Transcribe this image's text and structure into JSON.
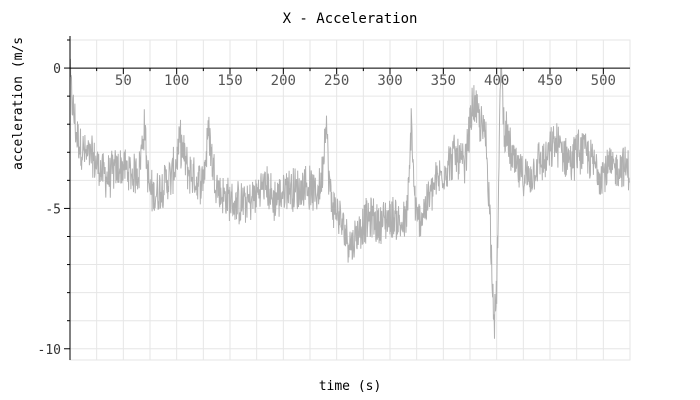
{
  "chart_data": {
    "type": "line",
    "title": "X - Acceleration",
    "xlabel": "time (s)",
    "ylabel": "acceleration (m/s",
    "xlim": [
      0,
      525
    ],
    "ylim": [
      -10.4,
      1.0
    ],
    "x_ticks": [
      50,
      100,
      150,
      200,
      250,
      300,
      350,
      400,
      450,
      500
    ],
    "x_tick_labels": [
      "50",
      "100",
      "150",
      "200",
      "250",
      "300",
      "350",
      "400",
      "450",
      "500"
    ],
    "y_ticks": [
      0,
      -5,
      -10
    ],
    "y_tick_labels": [
      "0",
      "-5",
      "-10"
    ],
    "grid": true,
    "series": [
      {
        "color": "#b0b0b0",
        "x": [
          0,
          3,
          6,
          10,
          15,
          20,
          25,
          30,
          35,
          40,
          45,
          50,
          55,
          60,
          65,
          68,
          70,
          72,
          75,
          80,
          85,
          90,
          95,
          100,
          103,
          106,
          110,
          115,
          120,
          125,
          128,
          130,
          133,
          136,
          140,
          145,
          150,
          155,
          160,
          165,
          170,
          175,
          180,
          185,
          190,
          195,
          200,
          205,
          210,
          215,
          220,
          225,
          230,
          235,
          238,
          240,
          242,
          245,
          250,
          255,
          260,
          265,
          270,
          275,
          280,
          285,
          290,
          295,
          300,
          305,
          310,
          315,
          318,
          320,
          322,
          325,
          330,
          335,
          340,
          345,
          350,
          355,
          360,
          365,
          370,
          372,
          375,
          378,
          380,
          385,
          390,
          392,
          394,
          396,
          398,
          400,
          402,
          404,
          406,
          408,
          410,
          415,
          420,
          425,
          430,
          435,
          440,
          445,
          450,
          455,
          460,
          465,
          470,
          475,
          480,
          485,
          490,
          495,
          500,
          505,
          510,
          515,
          520,
          525
        ],
        "y": [
          -0.3,
          -1.5,
          -2.3,
          -2.8,
          -3.1,
          -3.2,
          -3.4,
          -3.7,
          -3.9,
          -3.7,
          -3.6,
          -3.5,
          -3.7,
          -3.8,
          -3.6,
          -2.6,
          -2.0,
          -3.5,
          -4.4,
          -4.5,
          -4.3,
          -4.0,
          -3.9,
          -3.3,
          -2.6,
          -3.0,
          -3.6,
          -3.8,
          -4.1,
          -3.9,
          -3.0,
          -2.1,
          -3.2,
          -3.9,
          -4.4,
          -4.6,
          -4.7,
          -4.9,
          -4.8,
          -4.8,
          -4.7,
          -4.5,
          -4.2,
          -4.2,
          -4.7,
          -4.6,
          -4.4,
          -4.2,
          -4.3,
          -4.4,
          -4.1,
          -4.3,
          -4.5,
          -4.2,
          -3.0,
          -1.5,
          -3.5,
          -4.8,
          -5.1,
          -5.6,
          -6.0,
          -6.3,
          -5.8,
          -5.5,
          -5.4,
          -5.4,
          -5.6,
          -5.4,
          -5.3,
          -5.3,
          -5.6,
          -5.5,
          -4.2,
          -1.6,
          -4.0,
          -5.5,
          -5.2,
          -4.8,
          -4.3,
          -4.0,
          -3.7,
          -3.4,
          -3.1,
          -3.3,
          -3.6,
          -3.0,
          -2.0,
          -1.2,
          -1.5,
          -2.0,
          -2.5,
          -4.0,
          -5.5,
          -7.5,
          -9.0,
          -8.0,
          -4.0,
          0.4,
          -1.5,
          -2.3,
          -2.5,
          -3.3,
          -3.7,
          -3.8,
          -3.9,
          -3.6,
          -3.3,
          -3.4,
          -3.0,
          -2.7,
          -2.9,
          -3.1,
          -3.3,
          -3.0,
          -2.9,
          -3.1,
          -3.4,
          -3.6,
          -3.7,
          -3.6,
          -3.6,
          -3.5,
          -3.5,
          -3.7
        ]
      }
    ]
  }
}
